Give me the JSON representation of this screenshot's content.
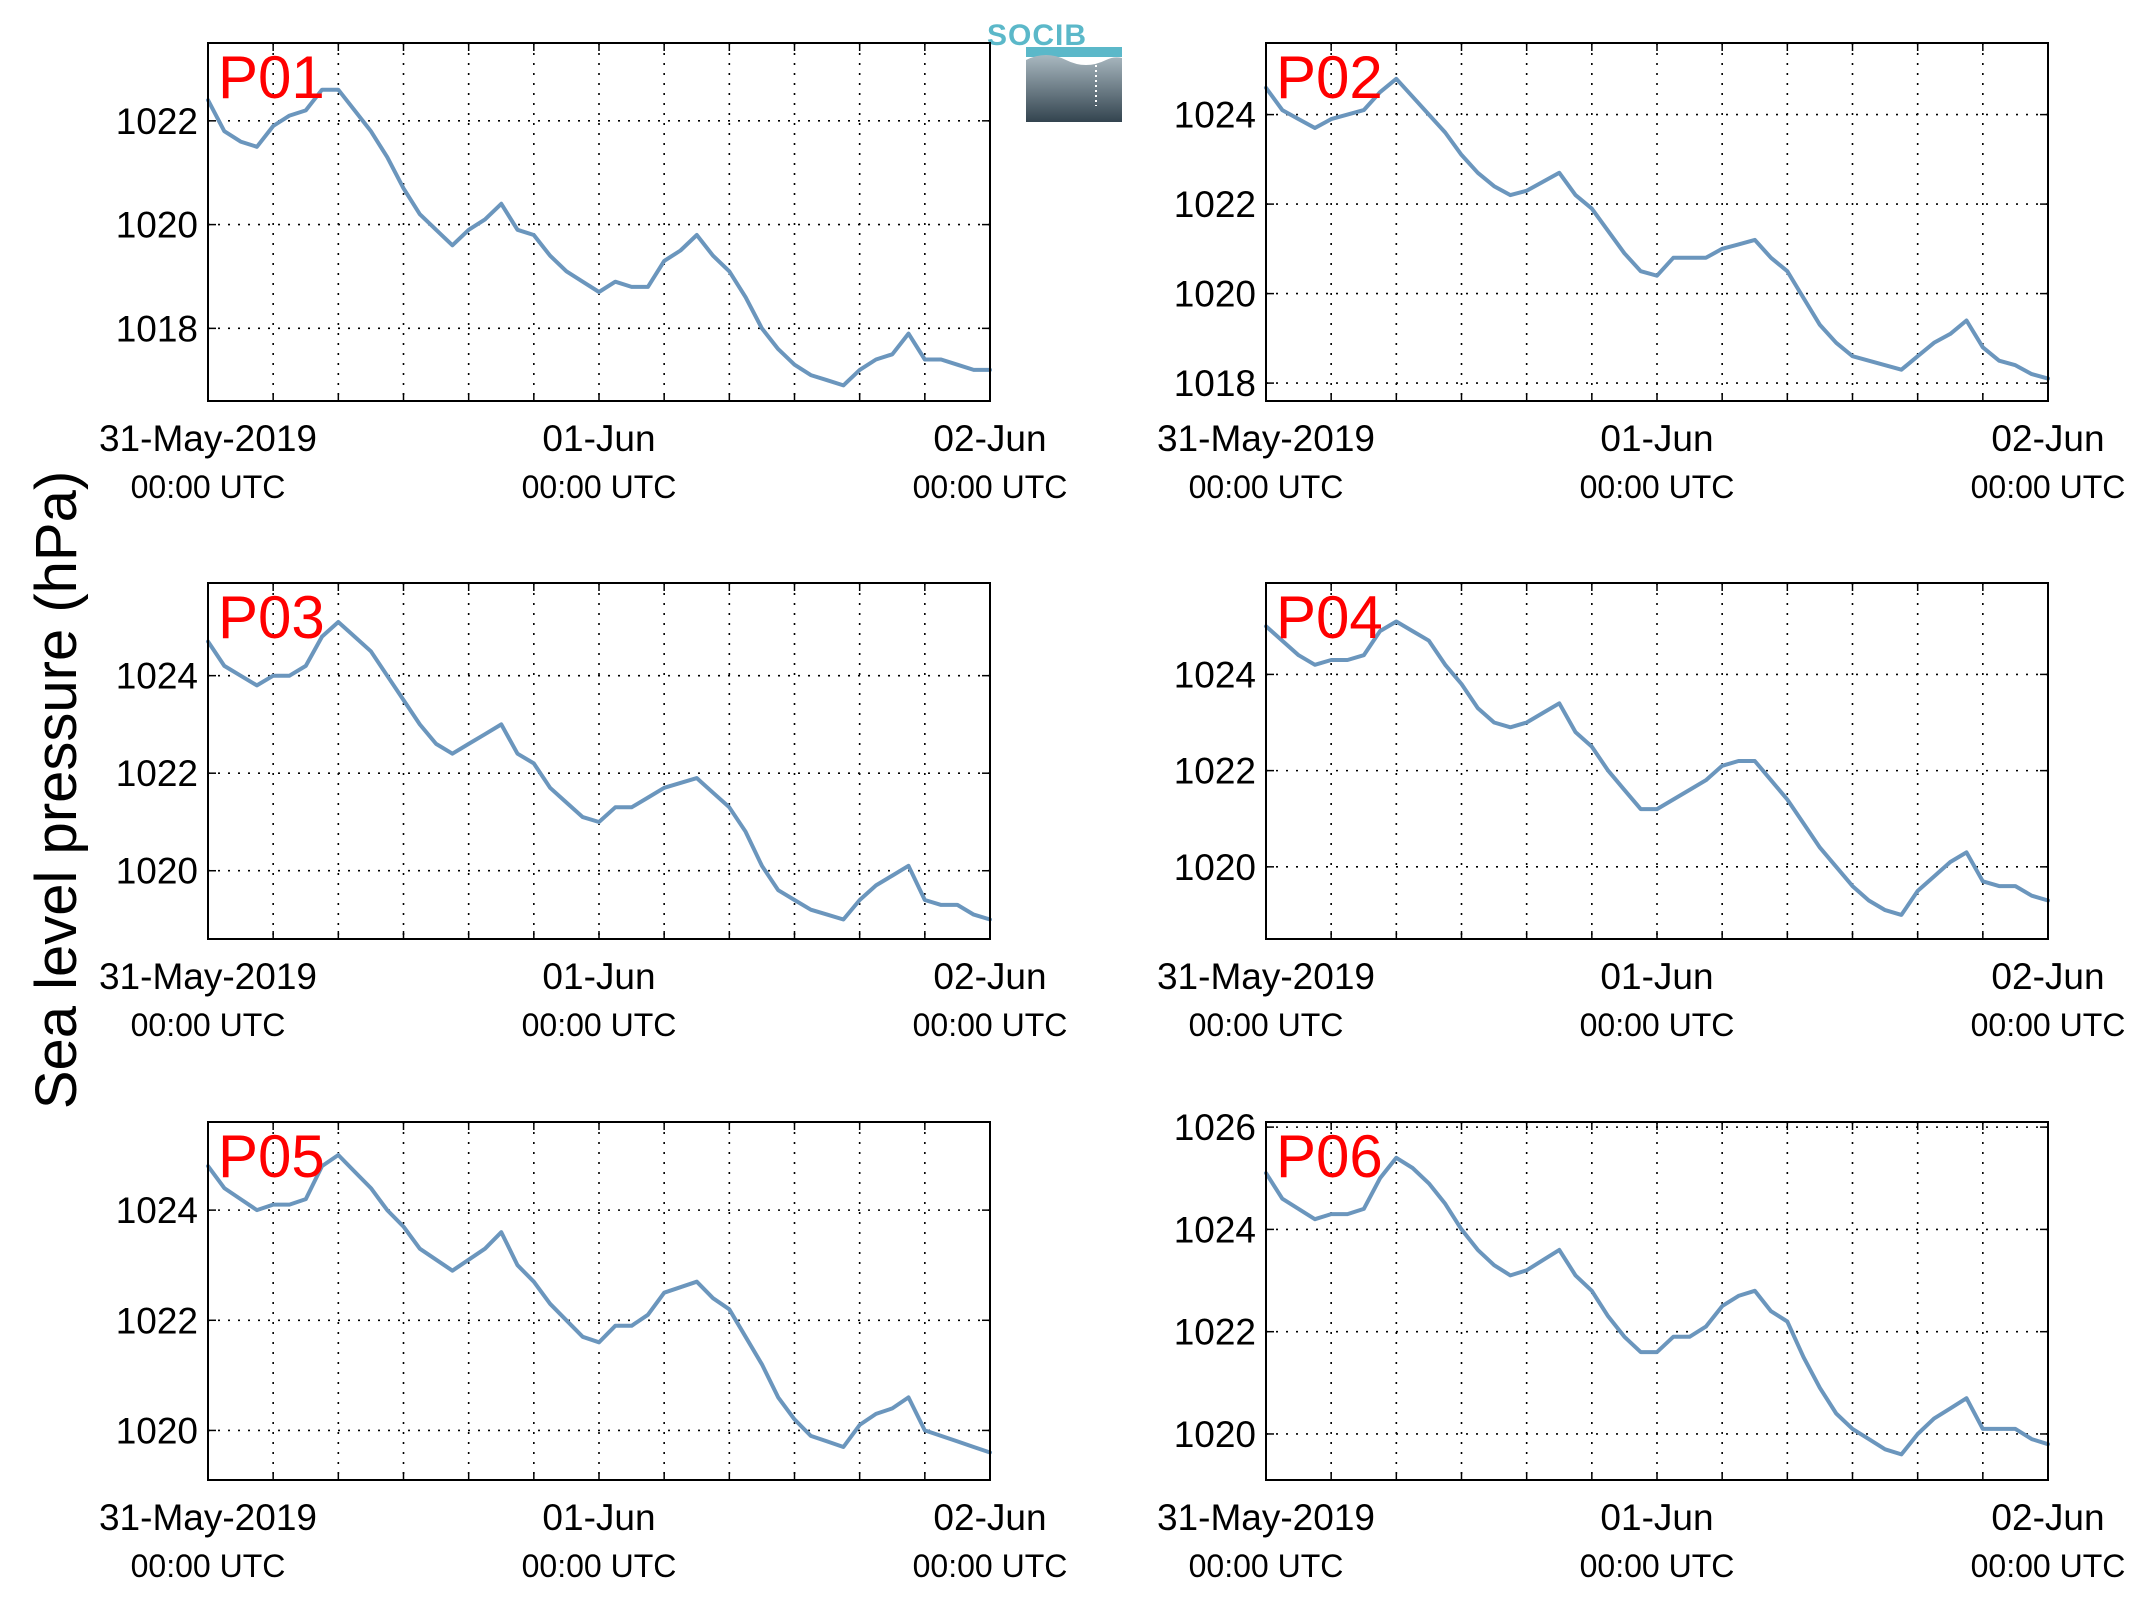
{
  "figure": {
    "ylabel": "Sea level pressure (hPa)",
    "logo": {
      "text": "SOCIB",
      "color": "#5bb8c9"
    },
    "line_color": "#6b96bd",
    "label_color": "#ff0000"
  },
  "chart_data": [
    {
      "type": "line",
      "name": "P01",
      "ylim": [
        1016.6,
        1023.5
      ],
      "yticks": [
        1018,
        1020,
        1022
      ],
      "xlim": [
        0,
        48
      ],
      "grid": true,
      "x": [
        0,
        1,
        2,
        3,
        4,
        5,
        6,
        7,
        8,
        9,
        10,
        11,
        12,
        13,
        14,
        15,
        16,
        17,
        18,
        19,
        20,
        21,
        22,
        23,
        24,
        25,
        26,
        27,
        28,
        29,
        30,
        31,
        32,
        33,
        34,
        35,
        36,
        37,
        38,
        39,
        40,
        41,
        42,
        43,
        44,
        45,
        46,
        47,
        48
      ],
      "values": [
        1022.4,
        1021.8,
        1021.6,
        1021.5,
        1021.9,
        1022.1,
        1022.2,
        1022.6,
        1022.6,
        1022.2,
        1021.8,
        1021.3,
        1020.7,
        1020.2,
        1019.9,
        1019.6,
        1019.9,
        1020.1,
        1020.4,
        1019.9,
        1019.8,
        1019.4,
        1019.1,
        1018.9,
        1018.7,
        1018.9,
        1018.8,
        1018.8,
        1019.3,
        1019.5,
        1019.8,
        1019.4,
        1019.1,
        1018.6,
        1018.0,
        1017.6,
        1017.3,
        1017.1,
        1017.0,
        1016.9,
        1017.2,
        1017.4,
        1017.5,
        1017.9,
        1017.4,
        1017.4,
        1017.3,
        1017.2,
        1017.2
      ],
      "xticks": [
        {
          "x": 0,
          "date": "31-May-2019",
          "time": "00:00 UTC"
        },
        {
          "x": 24,
          "date": "01-Jun",
          "time": "00:00 UTC"
        },
        {
          "x": 48,
          "date": "02-Jun",
          "time": "00:00 UTC"
        }
      ]
    },
    {
      "type": "line",
      "name": "P02",
      "ylim": [
        1017.6,
        1025.6
      ],
      "yticks": [
        1018,
        1020,
        1022,
        1024
      ],
      "xlim": [
        0,
        48
      ],
      "grid": true,
      "x": [
        0,
        1,
        2,
        3,
        4,
        5,
        6,
        7,
        8,
        9,
        10,
        11,
        12,
        13,
        14,
        15,
        16,
        17,
        18,
        19,
        20,
        21,
        22,
        23,
        24,
        25,
        26,
        27,
        28,
        29,
        30,
        31,
        32,
        33,
        34,
        35,
        36,
        37,
        38,
        39,
        40,
        41,
        42,
        43,
        44,
        45,
        46,
        47,
        48
      ],
      "values": [
        1024.6,
        1024.1,
        1023.9,
        1023.7,
        1023.9,
        1024.0,
        1024.1,
        1024.5,
        1024.8,
        1024.4,
        1024.0,
        1023.6,
        1023.1,
        1022.7,
        1022.4,
        1022.2,
        1022.3,
        1022.5,
        1022.7,
        1022.2,
        1021.9,
        1021.4,
        1020.9,
        1020.5,
        1020.4,
        1020.8,
        1020.8,
        1020.8,
        1021.0,
        1021.1,
        1021.2,
        1020.8,
        1020.5,
        1019.9,
        1019.3,
        1018.9,
        1018.6,
        1018.5,
        1018.4,
        1018.3,
        1018.6,
        1018.9,
        1019.1,
        1019.4,
        1018.8,
        1018.5,
        1018.4,
        1018.2,
        1018.1
      ],
      "xticks": [
        {
          "x": 0,
          "date": "31-May-2019",
          "time": "00:00 UTC"
        },
        {
          "x": 24,
          "date": "01-Jun",
          "time": "00:00 UTC"
        },
        {
          "x": 48,
          "date": "02-Jun",
          "time": "00:00 UTC"
        }
      ]
    },
    {
      "type": "line",
      "name": "P03",
      "ylim": [
        1018.6,
        1025.9
      ],
      "yticks": [
        1020,
        1022,
        1024
      ],
      "xlim": [
        0,
        48
      ],
      "grid": true,
      "x": [
        0,
        1,
        2,
        3,
        4,
        5,
        6,
        7,
        8,
        9,
        10,
        11,
        12,
        13,
        14,
        15,
        16,
        17,
        18,
        19,
        20,
        21,
        22,
        23,
        24,
        25,
        26,
        27,
        28,
        29,
        30,
        31,
        32,
        33,
        34,
        35,
        36,
        37,
        38,
        39,
        40,
        41,
        42,
        43,
        44,
        45,
        46,
        47,
        48
      ],
      "values": [
        1024.7,
        1024.2,
        1024.0,
        1023.8,
        1024.0,
        1024.0,
        1024.2,
        1024.8,
        1025.1,
        1024.8,
        1024.5,
        1024.0,
        1023.5,
        1023.0,
        1022.6,
        1022.4,
        1022.6,
        1022.8,
        1023.0,
        1022.4,
        1022.2,
        1021.7,
        1021.4,
        1021.1,
        1021.0,
        1021.3,
        1021.3,
        1021.5,
        1021.7,
        1021.8,
        1021.9,
        1021.6,
        1021.3,
        1020.8,
        1020.1,
        1019.6,
        1019.4,
        1019.2,
        1019.1,
        1019.0,
        1019.4,
        1019.7,
        1019.9,
        1020.1,
        1019.4,
        1019.3,
        1019.3,
        1019.1,
        1019.0
      ],
      "xticks": [
        {
          "x": 0,
          "date": "31-May-2019",
          "time": "00:00 UTC"
        },
        {
          "x": 24,
          "date": "01-Jun",
          "time": "00:00 UTC"
        },
        {
          "x": 48,
          "date": "02-Jun",
          "time": "00:00 UTC"
        }
      ]
    },
    {
      "type": "line",
      "name": "P04",
      "ylim": [
        1018.5,
        1025.9
      ],
      "yticks": [
        1020,
        1022,
        1024
      ],
      "xlim": [
        0,
        48
      ],
      "grid": true,
      "x": [
        0,
        1,
        2,
        3,
        4,
        5,
        6,
        7,
        8,
        9,
        10,
        11,
        12,
        13,
        14,
        15,
        16,
        17,
        18,
        19,
        20,
        21,
        22,
        23,
        24,
        25,
        26,
        27,
        28,
        29,
        30,
        31,
        32,
        33,
        34,
        35,
        36,
        37,
        38,
        39,
        40,
        41,
        42,
        43,
        44,
        45,
        46,
        47,
        48
      ],
      "values": [
        1025.0,
        1024.7,
        1024.4,
        1024.2,
        1024.3,
        1024.3,
        1024.4,
        1024.9,
        1025.1,
        1024.9,
        1024.7,
        1024.2,
        1023.8,
        1023.3,
        1023.0,
        1022.9,
        1023.0,
        1023.2,
        1023.4,
        1022.8,
        1022.5,
        1022.0,
        1021.6,
        1021.2,
        1021.2,
        1021.4,
        1021.6,
        1021.8,
        1022.1,
        1022.2,
        1022.2,
        1021.8,
        1021.4,
        1020.9,
        1020.4,
        1020.0,
        1019.6,
        1019.3,
        1019.1,
        1019.0,
        1019.5,
        1019.8,
        1020.1,
        1020.3,
        1019.7,
        1019.6,
        1019.6,
        1019.4,
        1019.3
      ],
      "xticks": [
        {
          "x": 0,
          "date": "31-May-2019",
          "time": "00:00 UTC"
        },
        {
          "x": 24,
          "date": "01-Jun",
          "time": "00:00 UTC"
        },
        {
          "x": 48,
          "date": "02-Jun",
          "time": "00:00 UTC"
        }
      ]
    },
    {
      "type": "line",
      "name": "P05",
      "ylim": [
        1019.1,
        1025.6
      ],
      "yticks": [
        1020,
        1022,
        1024
      ],
      "xlim": [
        0,
        48
      ],
      "grid": true,
      "x": [
        0,
        1,
        2,
        3,
        4,
        5,
        6,
        7,
        8,
        9,
        10,
        11,
        12,
        13,
        14,
        15,
        16,
        17,
        18,
        19,
        20,
        21,
        22,
        23,
        24,
        25,
        26,
        27,
        28,
        29,
        30,
        31,
        32,
        33,
        34,
        35,
        36,
        37,
        38,
        39,
        40,
        41,
        42,
        43,
        44,
        45,
        46,
        47,
        48
      ],
      "values": [
        1024.8,
        1024.4,
        1024.2,
        1024.0,
        1024.1,
        1024.1,
        1024.2,
        1024.8,
        1025.0,
        1024.7,
        1024.4,
        1024.0,
        1023.7,
        1023.3,
        1023.1,
        1022.9,
        1023.1,
        1023.3,
        1023.6,
        1023.0,
        1022.7,
        1022.3,
        1022.0,
        1021.7,
        1021.6,
        1021.9,
        1021.9,
        1022.1,
        1022.5,
        1022.6,
        1022.7,
        1022.4,
        1022.2,
        1021.7,
        1021.2,
        1020.6,
        1020.2,
        1019.9,
        1019.8,
        1019.7,
        1020.1,
        1020.3,
        1020.4,
        1020.6,
        1020.0,
        1019.9,
        1019.8,
        1019.7,
        1019.6
      ],
      "xticks": [
        {
          "x": 0,
          "date": "31-May-2019",
          "time": "00:00 UTC"
        },
        {
          "x": 24,
          "date": "01-Jun",
          "time": "00:00 UTC"
        },
        {
          "x": 48,
          "date": "02-Jun",
          "time": "00:00 UTC"
        }
      ]
    },
    {
      "type": "line",
      "name": "P06",
      "ylim": [
        1019.1,
        1026.1
      ],
      "yticks": [
        1020,
        1022,
        1024,
        1026
      ],
      "xlim": [
        0,
        48
      ],
      "grid": true,
      "x": [
        0,
        1,
        2,
        3,
        4,
        5,
        6,
        7,
        8,
        9,
        10,
        11,
        12,
        13,
        14,
        15,
        16,
        17,
        18,
        19,
        20,
        21,
        22,
        23,
        24,
        25,
        26,
        27,
        28,
        29,
        30,
        31,
        32,
        33,
        34,
        35,
        36,
        37,
        38,
        39,
        40,
        41,
        42,
        43,
        44,
        45,
        46,
        47,
        48
      ],
      "values": [
        1025.1,
        1024.6,
        1024.4,
        1024.2,
        1024.3,
        1024.3,
        1024.4,
        1025.0,
        1025.4,
        1025.2,
        1024.9,
        1024.5,
        1024.0,
        1023.6,
        1023.3,
        1023.1,
        1023.2,
        1023.4,
        1023.6,
        1023.1,
        1022.8,
        1022.3,
        1021.9,
        1021.6,
        1021.6,
        1021.9,
        1021.9,
        1022.1,
        1022.5,
        1022.7,
        1022.8,
        1022.4,
        1022.2,
        1021.5,
        1020.9,
        1020.4,
        1020.1,
        1019.9,
        1019.7,
        1019.6,
        1020.0,
        1020.3,
        1020.5,
        1020.7,
        1020.1,
        1020.1,
        1020.1,
        1019.9,
        1019.8
      ],
      "xticks": [
        {
          "x": 0,
          "date": "31-May-2019",
          "time": "00:00 UTC"
        },
        {
          "x": 24,
          "date": "01-Jun",
          "time": "00:00 UTC"
        },
        {
          "x": 48,
          "date": "02-Jun",
          "time": "00:00 UTC"
        }
      ]
    }
  ]
}
